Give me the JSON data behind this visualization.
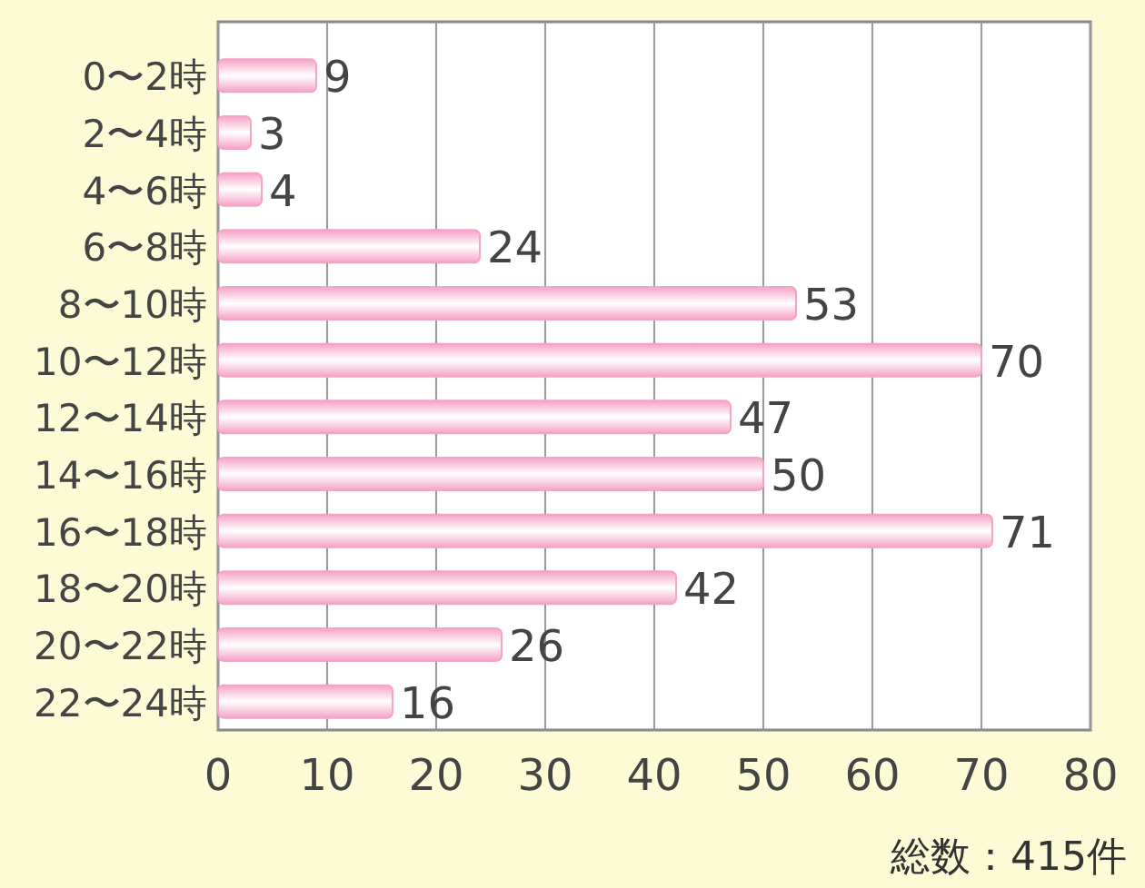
{
  "chart_data": {
    "type": "bar",
    "orientation": "horizontal",
    "categories": [
      "0〜2時",
      "2〜4時",
      "4〜6時",
      "6〜8時",
      "8〜10時",
      "10〜12時",
      "12〜14時",
      "14〜16時",
      "16〜18時",
      "18〜20時",
      "20〜22時",
      "22〜24時"
    ],
    "values": [
      9,
      3,
      4,
      24,
      53,
      70,
      47,
      50,
      71,
      42,
      26,
      16
    ],
    "color": "#f5a3c7",
    "xlim": [
      0,
      80
    ],
    "xticks": [
      0,
      10,
      20,
      30,
      40,
      50,
      60,
      70,
      80
    ],
    "grid": "x",
    "data_labels": true,
    "annotations": [
      "総数：415件"
    ]
  }
}
